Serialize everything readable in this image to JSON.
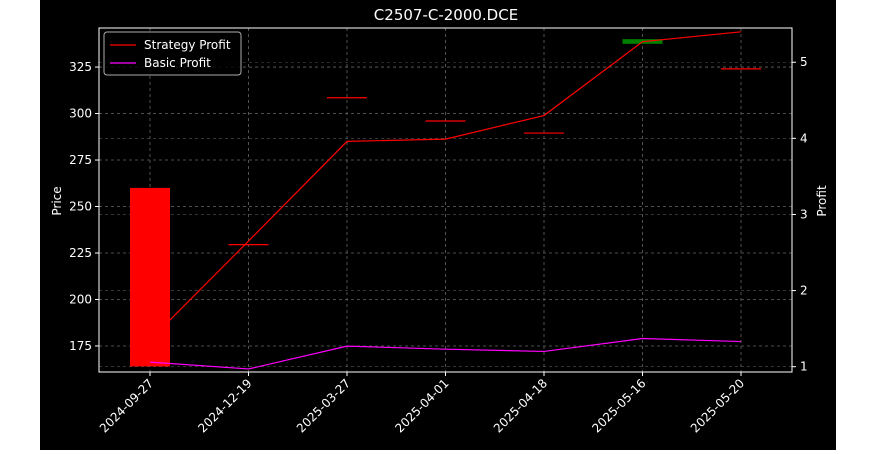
{
  "chart_data": {
    "type": "candlestick-line",
    "title": "C2507-C-2000.DCE",
    "categories": [
      "2024-09-27",
      "2024-12-19",
      "2025-03-27",
      "2025-04-01",
      "2025-04-18",
      "2025-05-16",
      "2025-05-20"
    ],
    "left_axis": {
      "label": "Price",
      "ylim": [
        161,
        346
      ],
      "ticks": [
        175,
        200,
        225,
        250,
        275,
        300,
        325
      ]
    },
    "right_axis": {
      "label": "Profit",
      "ylim": [
        0.93,
        5.45
      ],
      "ticks": [
        1,
        2,
        3,
        4,
        5
      ]
    },
    "candles": [
      {
        "date": "2024-09-27",
        "open": 164,
        "close": 260,
        "color": "#ff0000"
      },
      {
        "date": "2024-12-19",
        "open": 229.5,
        "close": 229.5,
        "color": "#ff0000"
      },
      {
        "date": "2025-03-27",
        "open": 308.5,
        "close": 308.5,
        "color": "#ff0000"
      },
      {
        "date": "2025-04-01",
        "open": 296,
        "close": 296,
        "color": "#ff0000"
      },
      {
        "date": "2025-04-18",
        "open": 289.5,
        "close": 289.5,
        "color": "#ff0000"
      },
      {
        "date": "2025-05-16",
        "open": 337.5,
        "close": 340,
        "color": "#008000"
      },
      {
        "date": "2025-05-20",
        "open": 324,
        "close": 324,
        "color": "#ff0000"
      }
    ],
    "series": [
      {
        "name": "Strategy Profit",
        "color": "#ff0000",
        "values": [
          1.35,
          2.65,
          3.96,
          3.99,
          4.3,
          5.27,
          5.4
        ]
      },
      {
        "name": "Basic Profit",
        "color": "#ff00ff",
        "values": [
          1.06,
          0.97,
          1.27,
          1.23,
          1.2,
          1.37,
          1.33
        ]
      }
    ],
    "legend": "top-left",
    "grid": true
  }
}
